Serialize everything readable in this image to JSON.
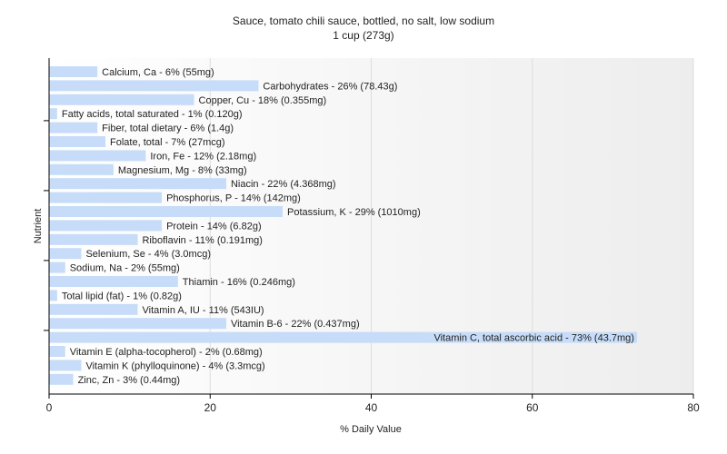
{
  "chart_data": {
    "type": "bar",
    "orientation": "horizontal",
    "title": "Sauce, tomato chili sauce, bottled, no salt, low sodium",
    "subtitle": "1 cup (273g)",
    "xlabel": "% Daily Value",
    "ylabel": "Nutrient",
    "xlim": [
      0,
      80
    ],
    "xticks": [
      0,
      20,
      40,
      60,
      80
    ],
    "grid": "vertical",
    "colors": {
      "bar": "#c6dcf8",
      "grid": "#dddddd",
      "axis": "#000000",
      "text": "#222222"
    },
    "categories": [
      "Calcium, Ca",
      "Carbohydrates",
      "Copper, Cu",
      "Fatty acids, total saturated",
      "Fiber, total dietary",
      "Folate, total",
      "Iron, Fe",
      "Magnesium, Mg",
      "Niacin",
      "Phosphorus, P",
      "Potassium, K",
      "Protein",
      "Riboflavin",
      "Selenium, Se",
      "Sodium, Na",
      "Thiamin",
      "Total lipid (fat)",
      "Vitamin A, IU",
      "Vitamin B-6",
      "Vitamin C, total ascorbic acid",
      "Vitamin E (alpha-tocopherol)",
      "Vitamin K (phylloquinone)",
      "Zinc, Zn"
    ],
    "values": [
      6,
      26,
      18,
      1,
      6,
      7,
      12,
      8,
      22,
      14,
      29,
      14,
      11,
      4,
      2,
      16,
      1,
      11,
      22,
      73,
      2,
      4,
      3
    ],
    "labels": [
      "Calcium, Ca - 6% (55mg)",
      "Carbohydrates - 26% (78.43g)",
      "Copper, Cu - 18% (0.355mg)",
      "Fatty acids, total saturated - 1% (0.120g)",
      "Fiber, total dietary - 6% (1.4g)",
      "Folate, total - 7% (27mcg)",
      "Iron, Fe - 12% (2.18mg)",
      "Magnesium, Mg - 8% (33mg)",
      "Niacin - 22% (4.368mg)",
      "Phosphorus, P - 14% (142mg)",
      "Potassium, K - 29% (1010mg)",
      "Protein - 14% (6.82g)",
      "Riboflavin - 11% (0.191mg)",
      "Selenium, Se - 4% (3.0mcg)",
      "Sodium, Na - 2% (55mg)",
      "Thiamin - 16% (0.246mg)",
      "Total lipid (fat) - 1% (0.82g)",
      "Vitamin A, IU - 11% (543IU)",
      "Vitamin B-6 - 22% (0.437mg)",
      "Vitamin C, total ascorbic acid - 73% (43.7mg)",
      "Vitamin E (alpha-tocopherol) - 2% (0.68mg)",
      "Vitamin K (phylloquinone) - 4% (3.3mcg)",
      "Zinc, Zn - 3% (0.44mg)"
    ]
  }
}
